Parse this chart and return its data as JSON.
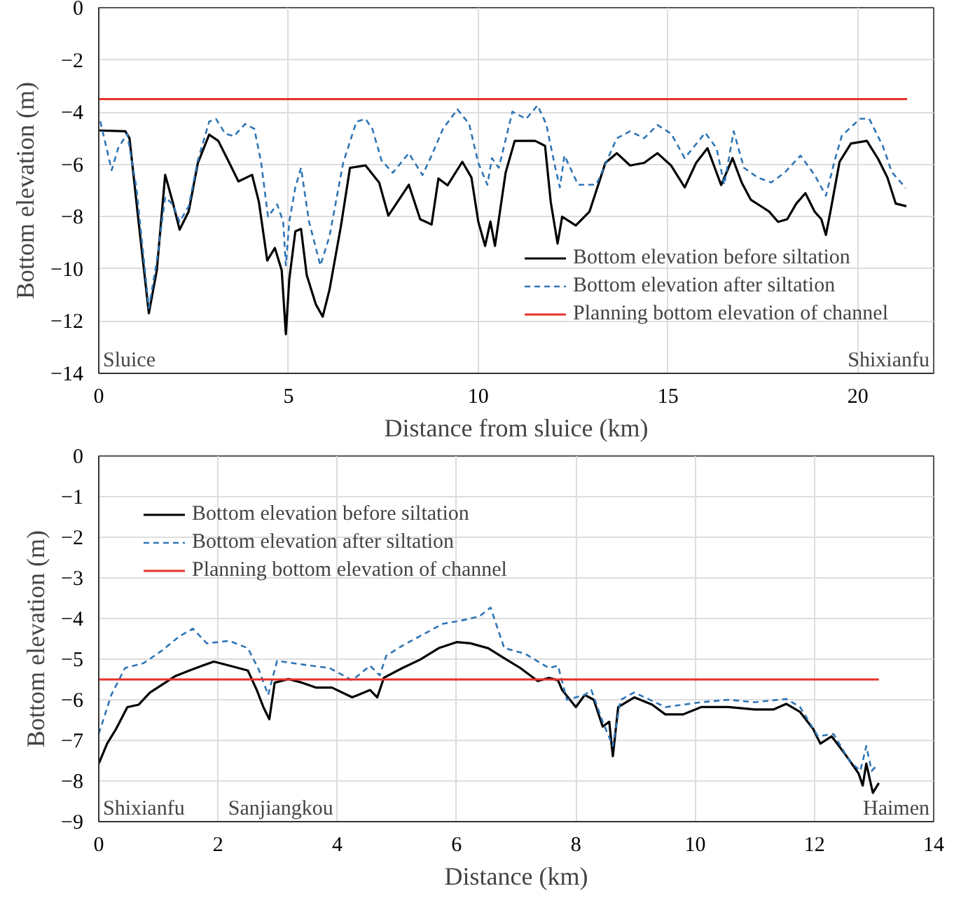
{
  "chart_data": [
    {
      "type": "line",
      "xlabel": "Distance from sluice (km)",
      "ylabel": "Bottom elevation (m)",
      "xlim": [
        0,
        22
      ],
      "ylim": [
        -14,
        0
      ],
      "xticks": [
        0,
        5,
        10,
        15,
        20
      ],
      "yticks": [
        -14,
        -12,
        -10,
        -8,
        -6,
        -4,
        -2,
        0
      ],
      "grid": true,
      "legend": "bottom right",
      "series": [
        {
          "name": "Bottom elevation before siltation",
          "color": "#000000",
          "line_style": "solid",
          "x": [
            0,
            0.7,
            0.81,
            1.05,
            1.32,
            1.53,
            1.75,
            1.95,
            2.13,
            2.37,
            2.61,
            2.91,
            3.15,
            3.44,
            3.68,
            4.04,
            4.22,
            4.44,
            4.64,
            4.82,
            4.93,
            5.02,
            5.18,
            5.33,
            5.48,
            5.72,
            5.9,
            6.08,
            6.38,
            6.62,
            7.03,
            7.39,
            7.63,
            7.87,
            8.17,
            8.47,
            8.77,
            8.95,
            9.19,
            9.58,
            9.82,
            10.0,
            10.18,
            10.32,
            10.44,
            10.72,
            10.96,
            11.5,
            11.76,
            11.91,
            12.09,
            12.21,
            12.57,
            12.93,
            13.35,
            13.65,
            14.0,
            14.37,
            14.72,
            15.08,
            15.44,
            15.74,
            16.04,
            16.4,
            16.7,
            16.94,
            17.18,
            17.48,
            17.66,
            17.9,
            18.14,
            18.38,
            18.62,
            18.86,
            19.04,
            19.16,
            19.28,
            19.52,
            19.82,
            20.24,
            20.54,
            20.78,
            21.0,
            21.28
          ],
          "values": [
            -4.7,
            -4.73,
            -5.0,
            -8.2,
            -11.7,
            -10.05,
            -6.4,
            -7.45,
            -8.5,
            -7.8,
            -5.95,
            -4.86,
            -5.1,
            -5.94,
            -6.65,
            -6.4,
            -7.44,
            -9.68,
            -9.2,
            -10.05,
            -12.5,
            -10.4,
            -8.56,
            -8.47,
            -10.24,
            -11.36,
            -11.83,
            -10.8,
            -8.37,
            -6.13,
            -6.04,
            -6.7,
            -7.96,
            -7.44,
            -6.78,
            -8.1,
            -8.3,
            -6.54,
            -6.8,
            -5.9,
            -6.5,
            -8.19,
            -9.12,
            -8.19,
            -9.12,
            -6.32,
            -5.1,
            -5.1,
            -5.29,
            -7.44,
            -9.03,
            -8.0,
            -8.34,
            -7.81,
            -5.94,
            -5.57,
            -6.04,
            -5.94,
            -5.57,
            -6.04,
            -6.88,
            -5.94,
            -5.38,
            -6.79,
            -5.76,
            -6.69,
            -7.35,
            -7.63,
            -7.8,
            -8.2,
            -8.1,
            -7.5,
            -7.1,
            -7.8,
            -8.1,
            -8.7,
            -7.8,
            -5.9,
            -5.2,
            -5.1,
            -5.8,
            -6.5,
            -7.5,
            -7.6
          ]
        },
        {
          "name": "Bottom elevation after siltation",
          "color": "#2e75b6",
          "line_style": "dashed",
          "x": [
            0.04,
            0.34,
            0.51,
            0.75,
            0.99,
            1.32,
            1.53,
            1.75,
            1.95,
            2.13,
            2.37,
            2.61,
            2.91,
            3.09,
            3.33,
            3.56,
            3.86,
            4.1,
            4.28,
            4.46,
            4.7,
            4.86,
            4.93,
            5.02,
            5.18,
            5.33,
            5.54,
            5.84,
            6.08,
            6.44,
            6.79,
            7.03,
            7.21,
            7.45,
            7.75,
            8.17,
            8.53,
            8.77,
            9.07,
            9.45,
            9.76,
            10.0,
            10.24,
            10.36,
            10.54,
            10.9,
            11.26,
            11.56,
            11.79,
            12.03,
            12.15,
            12.27,
            12.63,
            13.11,
            13.65,
            14.0,
            14.37,
            14.72,
            15.08,
            15.44,
            15.98,
            16.28,
            16.48,
            16.73,
            17.0,
            17.36,
            17.72,
            18.07,
            18.49,
            18.86,
            19.16,
            19.4,
            19.58,
            20.06,
            20.3,
            20.66,
            20.9,
            21.26
          ],
          "values": [
            -4.35,
            -6.22,
            -5.38,
            -4.82,
            -6.88,
            -11.5,
            -9.7,
            -7.25,
            -7.53,
            -8.2,
            -7.6,
            -5.85,
            -4.36,
            -4.26,
            -4.82,
            -4.92,
            -4.45,
            -4.64,
            -5.94,
            -8.0,
            -7.53,
            -8.19,
            -9.87,
            -8.19,
            -6.88,
            -6.13,
            -8.19,
            -9.87,
            -8.75,
            -5.94,
            -4.36,
            -4.26,
            -4.64,
            -5.85,
            -6.32,
            -5.57,
            -6.41,
            -5.66,
            -4.64,
            -3.89,
            -4.45,
            -5.94,
            -6.78,
            -5.76,
            -6.13,
            -3.98,
            -4.26,
            -3.74,
            -4.45,
            -6.13,
            -6.88,
            -5.66,
            -6.78,
            -6.78,
            -5.0,
            -4.73,
            -5.0,
            -4.49,
            -4.82,
            -5.76,
            -4.79,
            -5.38,
            -6.78,
            -4.73,
            -6.13,
            -6.5,
            -6.69,
            -6.32,
            -5.66,
            -6.4,
            -7.2,
            -5.8,
            -4.9,
            -4.25,
            -4.25,
            -5.3,
            -6.3,
            -6.9
          ]
        },
        {
          "name": "Planning bottom elevation of channel",
          "color": "#e8302a",
          "line_style": "solid",
          "x": [
            0,
            21.3
          ],
          "values": [
            -3.5,
            -3.5
          ]
        }
      ],
      "annotations": [
        "Sluice",
        "Shixianfu"
      ]
    },
    {
      "type": "line",
      "xlabel": "Distance (km)",
      "ylabel": "Bottom elevation (m)",
      "xlim": [
        0,
        14
      ],
      "ylim": [
        -9,
        0
      ],
      "xticks": [
        0,
        2,
        4,
        6,
        8,
        10,
        12,
        14
      ],
      "yticks": [
        -9,
        -8,
        -7,
        -6,
        -5,
        -4,
        -3,
        -2,
        -1,
        0
      ],
      "grid": true,
      "legend": "top left",
      "series": [
        {
          "name": "Bottom elevation before siltation",
          "color": "#000000",
          "line_style": "solid",
          "x": [
            0,
            0.14,
            0.29,
            0.48,
            0.67,
            0.86,
            1.05,
            1.28,
            1.52,
            1.74,
            1.93,
            2.19,
            2.5,
            2.65,
            2.76,
            2.86,
            2.95,
            3.18,
            3.41,
            3.64,
            3.91,
            4.25,
            4.55,
            4.67,
            4.78,
            5.09,
            5.39,
            5.7,
            6.0,
            6.23,
            6.53,
            6.76,
            7.07,
            7.36,
            7.55,
            7.7,
            7.77,
            8.0,
            8.15,
            8.3,
            8.45,
            8.56,
            8.62,
            8.71,
            8.98,
            9.28,
            9.5,
            9.8,
            10.1,
            10.56,
            11.0,
            11.31,
            11.53,
            11.76,
            11.98,
            12.1,
            12.29,
            12.51,
            12.74,
            12.81,
            12.87,
            12.98,
            13.08
          ],
          "values": [
            -7.57,
            -7.08,
            -6.72,
            -6.18,
            -6.12,
            -5.82,
            -5.64,
            -5.42,
            -5.28,
            -5.16,
            -5.06,
            -5.16,
            -5.28,
            -5.76,
            -6.18,
            -6.48,
            -5.58,
            -5.49,
            -5.58,
            -5.7,
            -5.7,
            -5.94,
            -5.76,
            -5.94,
            -5.46,
            -5.22,
            -5.01,
            -4.73,
            -4.58,
            -4.61,
            -4.73,
            -4.94,
            -5.22,
            -5.54,
            -5.46,
            -5.52,
            -5.76,
            -6.18,
            -5.88,
            -6.0,
            -6.66,
            -6.54,
            -7.39,
            -6.18,
            -5.94,
            -6.12,
            -6.36,
            -6.36,
            -6.18,
            -6.18,
            -6.24,
            -6.24,
            -6.1,
            -6.3,
            -6.72,
            -7.08,
            -6.9,
            -7.33,
            -7.81,
            -8.11,
            -7.57,
            -8.29,
            -8.05
          ]
        },
        {
          "name": "Bottom elevation after siltation",
          "color": "#2e75b6",
          "line_style": "dashed",
          "x": [
            0,
            0.21,
            0.44,
            0.75,
            1.05,
            1.36,
            1.58,
            1.81,
            2.19,
            2.5,
            2.69,
            2.84,
            2.99,
            3.26,
            3.56,
            3.87,
            4.25,
            4.55,
            4.71,
            4.82,
            5.09,
            5.39,
            5.77,
            6.08,
            6.38,
            6.57,
            6.8,
            7.14,
            7.55,
            7.7,
            7.85,
            8.15,
            8.26,
            8.45,
            8.62,
            8.75,
            8.98,
            9.5,
            10.1,
            10.56,
            11.0,
            11.53,
            11.76,
            12.06,
            12.32,
            12.59,
            12.77,
            12.87,
            12.96,
            13.04
          ],
          "values": [
            -6.84,
            -5.88,
            -5.22,
            -5.1,
            -4.8,
            -4.43,
            -4.25,
            -4.61,
            -4.55,
            -4.73,
            -5.28,
            -5.88,
            -5.04,
            -5.1,
            -5.16,
            -5.22,
            -5.52,
            -5.16,
            -5.4,
            -4.92,
            -4.67,
            -4.43,
            -4.13,
            -4.05,
            -3.95,
            -3.73,
            -4.73,
            -4.86,
            -5.22,
            -5.16,
            -6.0,
            -5.88,
            -5.76,
            -6.54,
            -7.14,
            -6.0,
            -5.82,
            -6.18,
            -6.06,
            -6.0,
            -6.06,
            -5.98,
            -6.18,
            -6.9,
            -6.84,
            -7.51,
            -7.75,
            -7.14,
            -7.75,
            -7.63
          ]
        },
        {
          "name": "Planning bottom elevation of channel",
          "color": "#e8302a",
          "line_style": "solid",
          "x": [
            0,
            13.08
          ],
          "values": [
            -5.5,
            -5.5
          ]
        }
      ],
      "annotations": [
        "Shixianfu",
        "Sanjiangkou",
        "Haimen"
      ]
    }
  ]
}
